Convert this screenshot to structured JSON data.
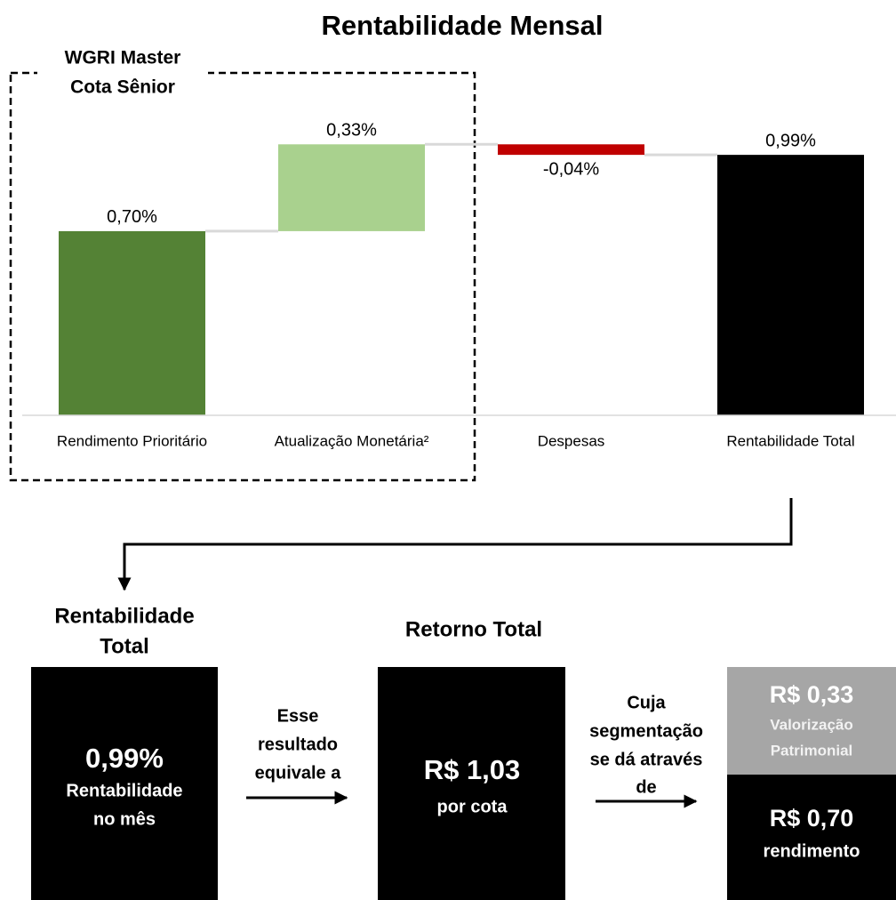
{
  "chart_data": {
    "type": "waterfall",
    "title": "Rentabilidade Mensal",
    "categories": [
      "Rendimento Prioritário",
      "Atualização Monetária²",
      "Despesas",
      "Rentabilidade Total"
    ],
    "values": [
      0.7,
      0.33,
      -0.04,
      0.99
    ],
    "value_labels": [
      "0,70%",
      "0,33%",
      "-0,04%",
      "0,99%"
    ],
    "measure": [
      "relative",
      "relative",
      "relative",
      "total"
    ],
    "colors": [
      "#548235",
      "#a9d18e",
      "#c00000",
      "#000000"
    ],
    "ylim": [
      0,
      1.2
    ],
    "annotation": [
      "WGRI Master",
      "Cota Sênior"
    ]
  },
  "summary": {
    "heading1": [
      "Rentabilidade",
      "Total"
    ],
    "box1": {
      "value": "0,99%",
      "caption": [
        "Rentabilidade",
        "no mês"
      ]
    },
    "connector1": [
      "Esse",
      "resultado",
      "equivale a"
    ],
    "heading2": "Retorno Total",
    "box2": {
      "value": "R$ 1,03",
      "caption": "por cota"
    },
    "connector2": [
      "Cuja",
      "segmentação",
      "se dá através",
      "de"
    ],
    "segments": [
      {
        "value": "R$ 0,33",
        "caption": [
          "Valorização",
          "Patrimonial"
        ]
      },
      {
        "value": "R$ 0,70",
        "caption": "rendimento"
      }
    ]
  }
}
